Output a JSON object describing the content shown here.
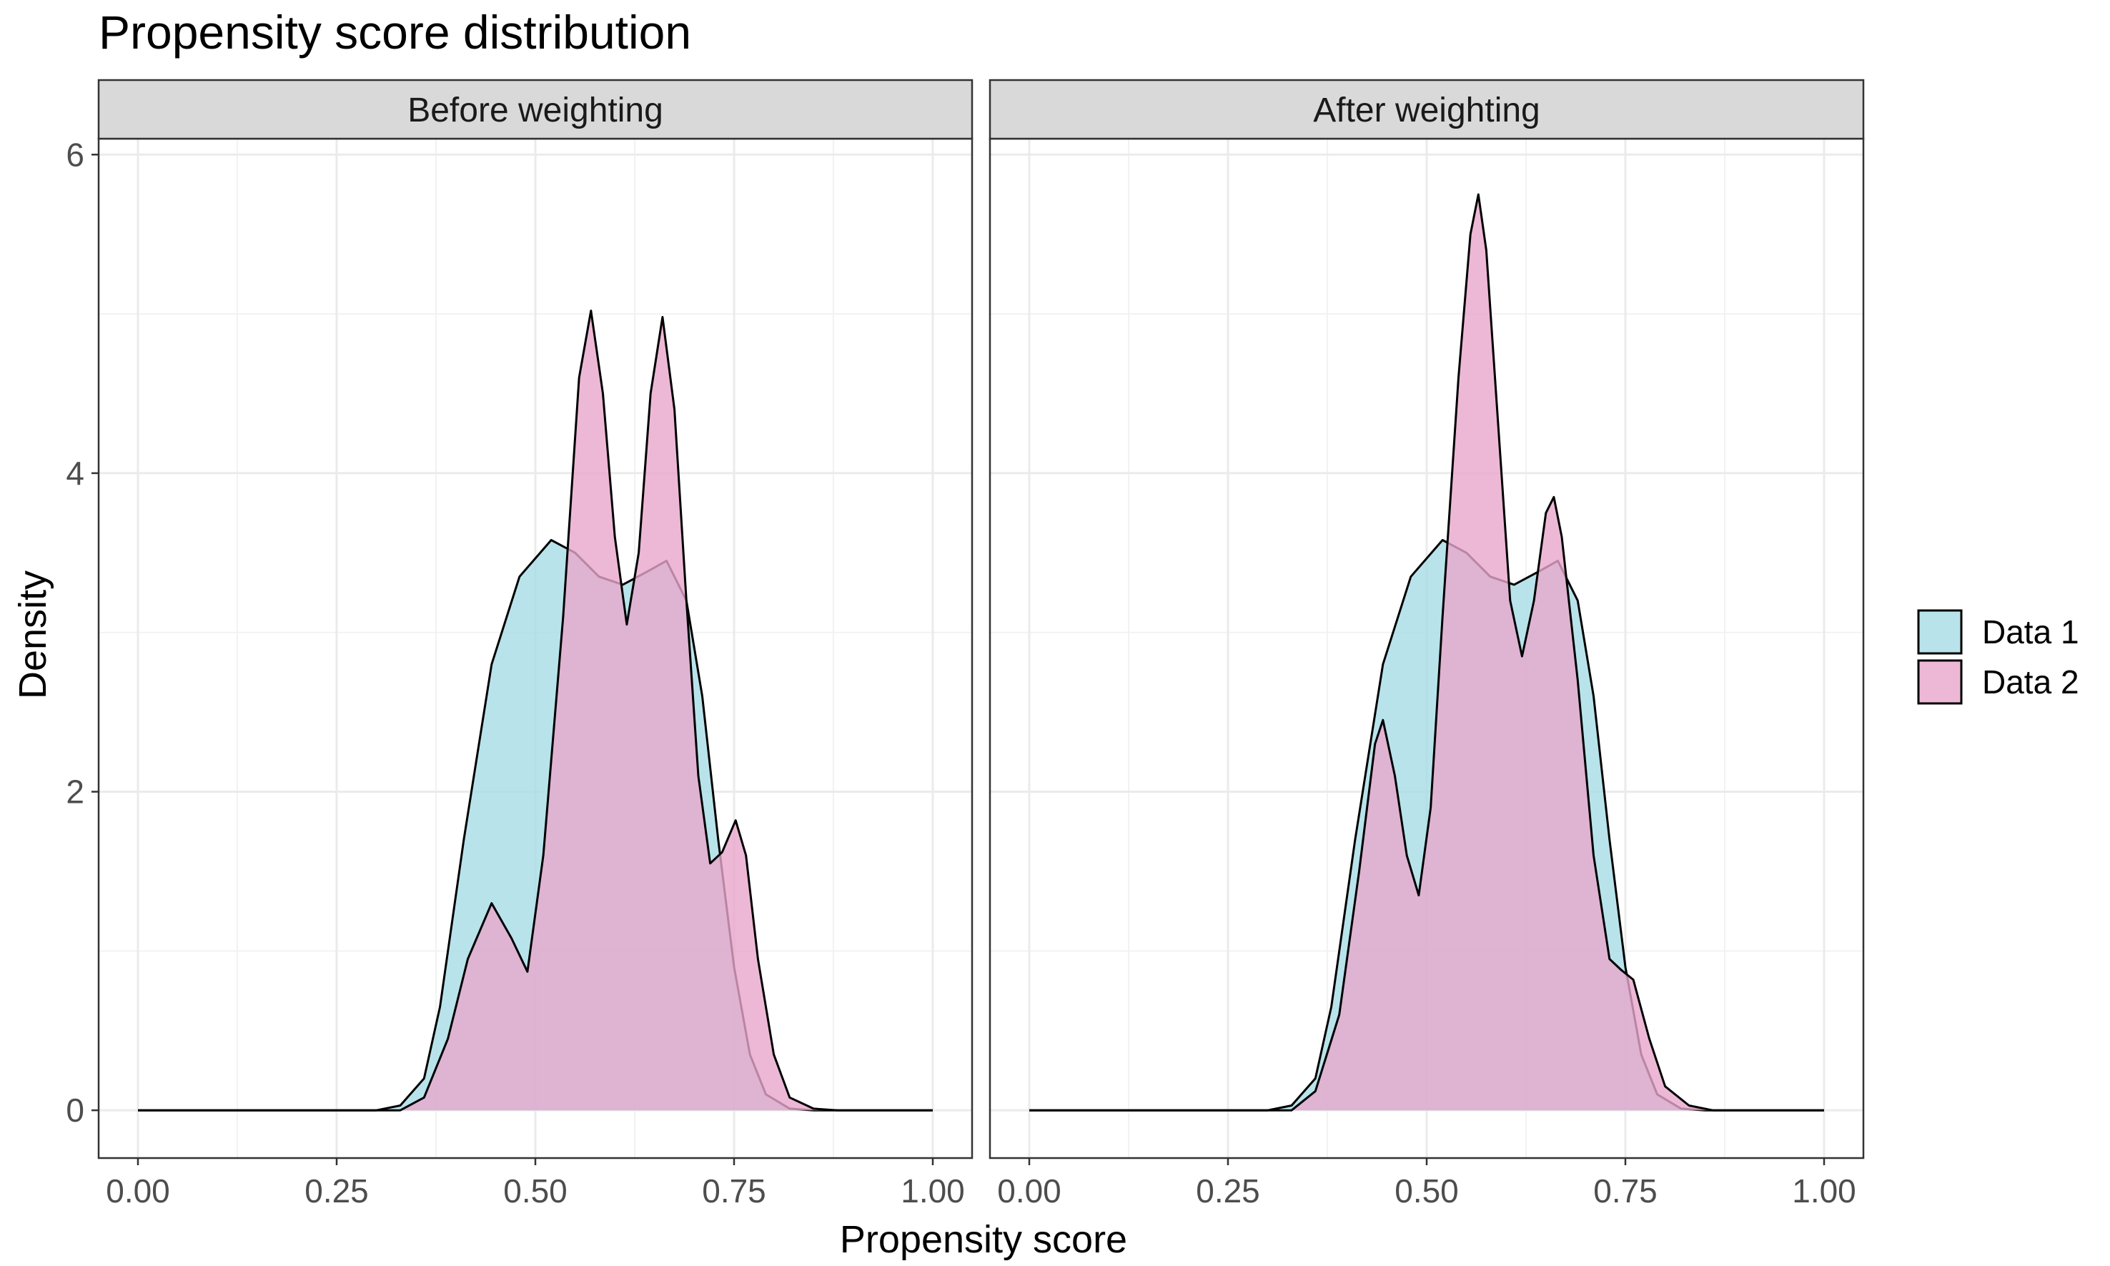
{
  "chart_data": {
    "type": "area",
    "title": "Propensity score distribution",
    "xlabel": "Propensity score",
    "ylabel": "Density",
    "xlim": [
      0,
      1
    ],
    "ylim": [
      -0.3,
      6.1
    ],
    "xticks": [
      0.0,
      0.25,
      0.5,
      0.75,
      1.0
    ],
    "xtick_labels": [
      "0.00",
      "0.25",
      "0.50",
      "0.75",
      "1.00"
    ],
    "yticks": [
      0,
      2,
      4,
      6
    ],
    "ytick_labels": [
      "0",
      "2",
      "4",
      "6"
    ],
    "grid": true,
    "legend_position": "right",
    "colors": {
      "Data 1": "#a6dce6",
      "Data 2": "#e8a6cc",
      "outline": "#000000"
    },
    "panels": [
      {
        "strip": "Before weighting",
        "series": [
          {
            "name": "Data 1",
            "points": [
              [
                0.0,
                0
              ],
              [
                0.3,
                0
              ],
              [
                0.33,
                0.03
              ],
              [
                0.36,
                0.2
              ],
              [
                0.38,
                0.65
              ],
              [
                0.41,
                1.7
              ],
              [
                0.445,
                2.8
              ],
              [
                0.48,
                3.35
              ],
              [
                0.52,
                3.58
              ],
              [
                0.55,
                3.5
              ],
              [
                0.58,
                3.35
              ],
              [
                0.61,
                3.3
              ],
              [
                0.64,
                3.38
              ],
              [
                0.665,
                3.45
              ],
              [
                0.69,
                3.2
              ],
              [
                0.71,
                2.6
              ],
              [
                0.73,
                1.7
              ],
              [
                0.75,
                0.9
              ],
              [
                0.77,
                0.35
              ],
              [
                0.79,
                0.1
              ],
              [
                0.82,
                0.01
              ],
              [
                0.85,
                0
              ],
              [
                1.0,
                0
              ]
            ]
          },
          {
            "name": "Data 2",
            "points": [
              [
                0.0,
                0
              ],
              [
                0.33,
                0
              ],
              [
                0.36,
                0.08
              ],
              [
                0.39,
                0.45
              ],
              [
                0.415,
                0.95
              ],
              [
                0.445,
                1.3
              ],
              [
                0.47,
                1.08
              ],
              [
                0.49,
                0.87
              ],
              [
                0.51,
                1.6
              ],
              [
                0.535,
                3.1
              ],
              [
                0.555,
                4.6
              ],
              [
                0.57,
                5.02
              ],
              [
                0.585,
                4.5
              ],
              [
                0.6,
                3.6
              ],
              [
                0.615,
                3.05
              ],
              [
                0.63,
                3.5
              ],
              [
                0.645,
                4.5
              ],
              [
                0.66,
                4.98
              ],
              [
                0.675,
                4.4
              ],
              [
                0.69,
                3.2
              ],
              [
                0.705,
                2.1
              ],
              [
                0.72,
                1.55
              ],
              [
                0.735,
                1.62
              ],
              [
                0.752,
                1.82
              ],
              [
                0.765,
                1.6
              ],
              [
                0.78,
                0.95
              ],
              [
                0.8,
                0.35
              ],
              [
                0.82,
                0.08
              ],
              [
                0.85,
                0.01
              ],
              [
                0.88,
                0
              ],
              [
                1.0,
                0
              ]
            ]
          }
        ]
      },
      {
        "strip": "After weighting",
        "series": [
          {
            "name": "Data 1",
            "points": [
              [
                0.0,
                0
              ],
              [
                0.3,
                0
              ],
              [
                0.33,
                0.03
              ],
              [
                0.36,
                0.2
              ],
              [
                0.38,
                0.65
              ],
              [
                0.41,
                1.7
              ],
              [
                0.445,
                2.8
              ],
              [
                0.48,
                3.35
              ],
              [
                0.52,
                3.58
              ],
              [
                0.55,
                3.5
              ],
              [
                0.58,
                3.35
              ],
              [
                0.61,
                3.3
              ],
              [
                0.64,
                3.38
              ],
              [
                0.665,
                3.45
              ],
              [
                0.69,
                3.2
              ],
              [
                0.71,
                2.6
              ],
              [
                0.73,
                1.7
              ],
              [
                0.75,
                0.9
              ],
              [
                0.77,
                0.35
              ],
              [
                0.79,
                0.1
              ],
              [
                0.82,
                0.01
              ],
              [
                0.85,
                0
              ],
              [
                1.0,
                0
              ]
            ]
          },
          {
            "name": "Data 2",
            "points": [
              [
                0.0,
                0
              ],
              [
                0.33,
                0
              ],
              [
                0.36,
                0.12
              ],
              [
                0.39,
                0.6
              ],
              [
                0.415,
                1.5
              ],
              [
                0.435,
                2.3
              ],
              [
                0.445,
                2.45
              ],
              [
                0.46,
                2.1
              ],
              [
                0.475,
                1.6
              ],
              [
                0.49,
                1.35
              ],
              [
                0.505,
                1.9
              ],
              [
                0.52,
                3.1
              ],
              [
                0.54,
                4.6
              ],
              [
                0.555,
                5.5
              ],
              [
                0.565,
                5.75
              ],
              [
                0.575,
                5.4
              ],
              [
                0.59,
                4.3
              ],
              [
                0.605,
                3.2
              ],
              [
                0.62,
                2.85
              ],
              [
                0.635,
                3.2
              ],
              [
                0.65,
                3.75
              ],
              [
                0.66,
                3.85
              ],
              [
                0.67,
                3.6
              ],
              [
                0.69,
                2.7
              ],
              [
                0.71,
                1.6
              ],
              [
                0.73,
                0.95
              ],
              [
                0.745,
                0.88
              ],
              [
                0.76,
                0.82
              ],
              [
                0.78,
                0.45
              ],
              [
                0.8,
                0.15
              ],
              [
                0.83,
                0.03
              ],
              [
                0.86,
                0
              ],
              [
                1.0,
                0
              ]
            ]
          }
        ]
      }
    ]
  }
}
